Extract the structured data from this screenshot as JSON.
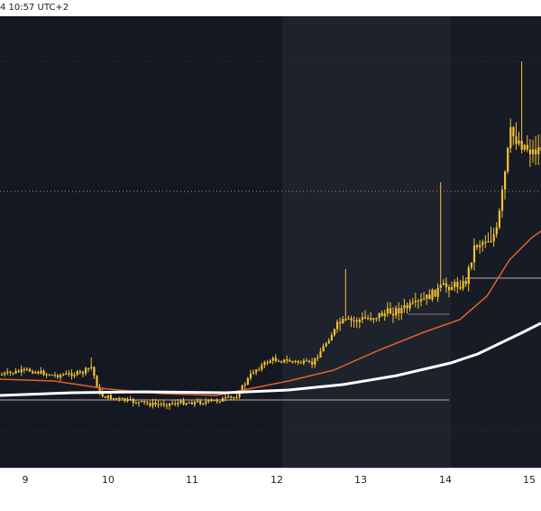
{
  "header": {
    "timestamp_text": "4 10:57 UTC+2"
  },
  "colors": {
    "background": "#141823",
    "session_band": "#1e222d",
    "candle": "#f2c230",
    "ema_fast": "#e0622a",
    "ema_slow": "#ffffff",
    "dotted_line": "#c8963c",
    "level_line": "#8a7b80"
  },
  "chart_data": {
    "type": "candlestick",
    "title": "",
    "xlabel": "",
    "ylabel": "",
    "x_ticks": [
      "9",
      "10",
      "11",
      "12",
      "13",
      "14",
      "15"
    ],
    "grid": false,
    "legend": "none",
    "series": [
      {
        "kind": "candles"
      },
      {
        "kind": "moving-average"
      },
      {
        "kind": "moving-average"
      }
    ]
  }
}
